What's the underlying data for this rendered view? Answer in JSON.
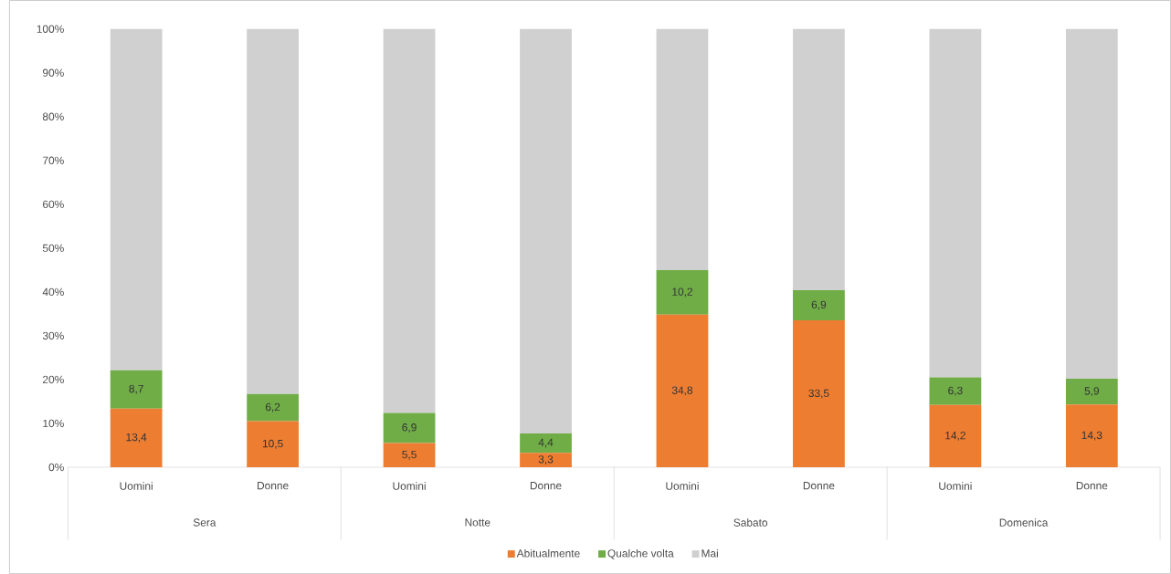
{
  "chart_data": {
    "type": "bar",
    "stacked": true,
    "categories": [
      "Uomini",
      "Donne",
      "Uomini",
      "Donne",
      "Uomini",
      "Donne",
      "Uomini",
      "Donne"
    ],
    "series": [
      {
        "name": "Abitualmente",
        "color": "#ed7d31",
        "values": [
          13.4,
          10.5,
          5.5,
          3.3,
          34.8,
          33.5,
          14.2,
          14.3
        ],
        "value_labels": [
          "13,4",
          "10,5",
          "5,5",
          "3,3",
          "34,8",
          "33,5",
          "14,2",
          "14,3"
        ]
      },
      {
        "name": "Qualche volta",
        "color": "#70ad47",
        "values": [
          8.7,
          6.2,
          6.9,
          4.4,
          10.2,
          6.9,
          6.3,
          5.9
        ],
        "value_labels": [
          "8,7",
          "6,2",
          "6,9",
          "4,4",
          "10,2",
          "6,9",
          "6,3",
          "5,9"
        ]
      },
      {
        "name": "Mai",
        "color": "#d0d0d0",
        "values": [
          77.9,
          83.3,
          87.6,
          92.3,
          55.0,
          59.6,
          79.5,
          79.8
        ]
      }
    ],
    "ylim": [
      0,
      100
    ],
    "yticks": [
      {
        "value": 0,
        "label": "0%"
      },
      {
        "value": 10,
        "label": "10%"
      },
      {
        "value": 20,
        "label": "20%"
      },
      {
        "value": 30,
        "label": "30%"
      },
      {
        "value": 40,
        "label": "40%"
      },
      {
        "value": 50,
        "label": "50%"
      },
      {
        "value": 60,
        "label": "60%"
      },
      {
        "value": 70,
        "label": "70%"
      },
      {
        "value": 80,
        "label": "80%"
      },
      {
        "value": 90,
        "label": "90%"
      },
      {
        "value": 100,
        "label": "100%"
      }
    ],
    "annotations": [
      "Sera",
      "Notte",
      "Sabato",
      "Domenica"
    ],
    "legend": "bottom"
  }
}
